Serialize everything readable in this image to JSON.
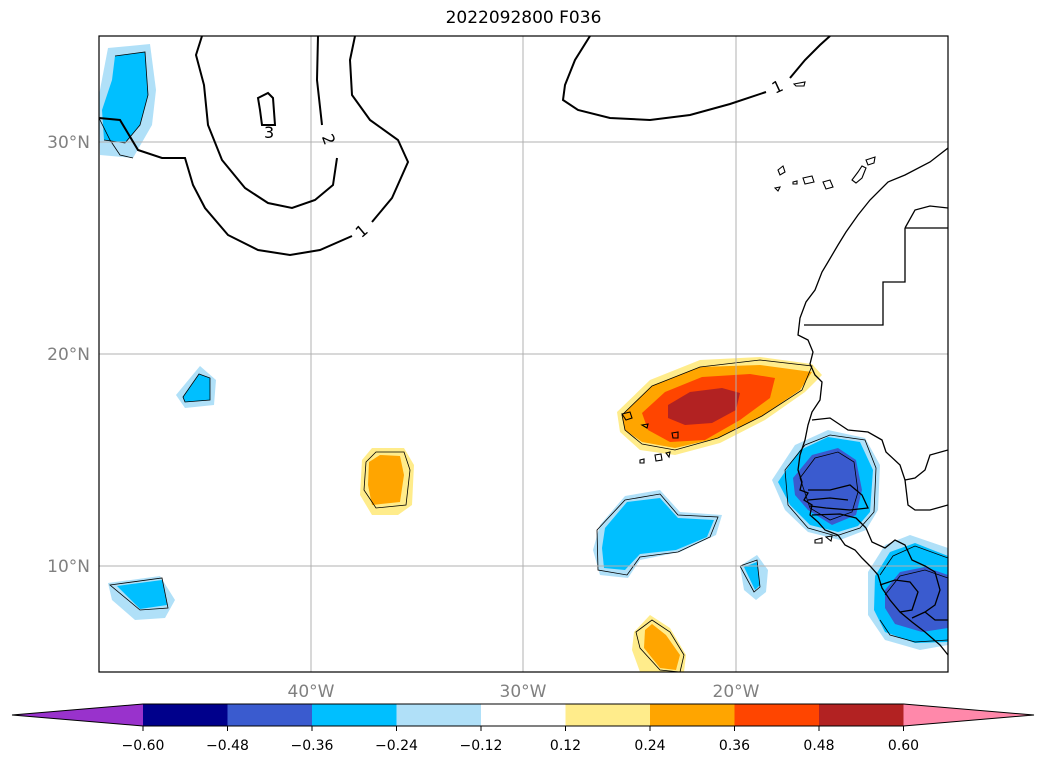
{
  "title": "2022092800 F036",
  "map": {
    "lat_ticks": [
      {
        "value": 30,
        "label": "30°N"
      },
      {
        "value": 20,
        "label": "20°N"
      },
      {
        "value": 10,
        "label": "10°N"
      }
    ],
    "lon_ticks": [
      {
        "value": -40,
        "label": "40°W"
      },
      {
        "value": -30,
        "label": "30°W"
      },
      {
        "value": -20,
        "label": "20°W"
      }
    ],
    "extent": {
      "lon_min": -50,
      "lon_max": -10,
      "lat_min": 5,
      "lat_max": 35
    },
    "contour_labels": [
      "3",
      "2",
      "1",
      "1"
    ]
  },
  "colorbar": {
    "labels": [
      "−0.60",
      "−0.48",
      "−0.36",
      "−0.24",
      "−0.12",
      "0.12",
      "0.24",
      "0.36",
      "0.48",
      "0.60"
    ],
    "colors": [
      "#9932CC",
      "#00008B",
      "#3A5BCF",
      "#00BFFF",
      "#B0E0F8",
      "#FFFFFF",
      "#FFEC8B",
      "#FFA500",
      "#FF4500",
      "#B22222",
      "#FF88AA"
    ],
    "extend": "both"
  }
}
